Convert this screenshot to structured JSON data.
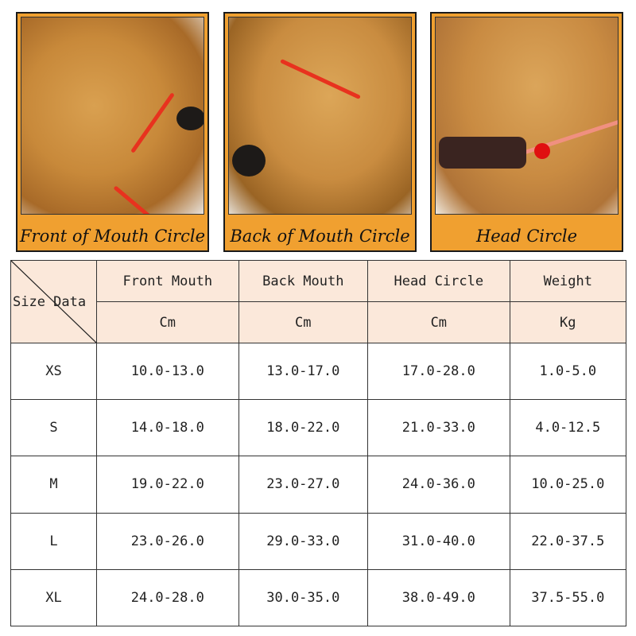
{
  "panels": [
    {
      "label": "Front of Mouth Circle"
    },
    {
      "label": "Back of Mouth Circle"
    },
    {
      "label": "Head Circle"
    }
  ],
  "colors": {
    "panel_bg": "#f0a030",
    "header_bg": "#fbe8da",
    "strap": "#e8321e"
  },
  "table": {
    "corner_label": "Size Data",
    "headers": [
      "Front Mouth",
      "Back Mouth",
      "Head Circle",
      "Weight"
    ],
    "units": [
      "Cm",
      "Cm",
      "Cm",
      "Kg"
    ],
    "rows": [
      {
        "size": "XS",
        "values": [
          "10.0-13.0",
          "13.0-17.0",
          "17.0-28.0",
          "1.0-5.0"
        ]
      },
      {
        "size": "S",
        "values": [
          "14.0-18.0",
          "18.0-22.0",
          "21.0-33.0",
          "4.0-12.5"
        ]
      },
      {
        "size": "M",
        "values": [
          "19.0-22.0",
          "23.0-27.0",
          "24.0-36.0",
          "10.0-25.0"
        ]
      },
      {
        "size": "L",
        "values": [
          "23.0-26.0",
          "29.0-33.0",
          "31.0-40.0",
          "22.0-37.5"
        ]
      },
      {
        "size": "XL",
        "values": [
          "24.0-28.0",
          "30.0-35.0",
          "38.0-49.0",
          "37.5-55.0"
        ]
      }
    ]
  }
}
